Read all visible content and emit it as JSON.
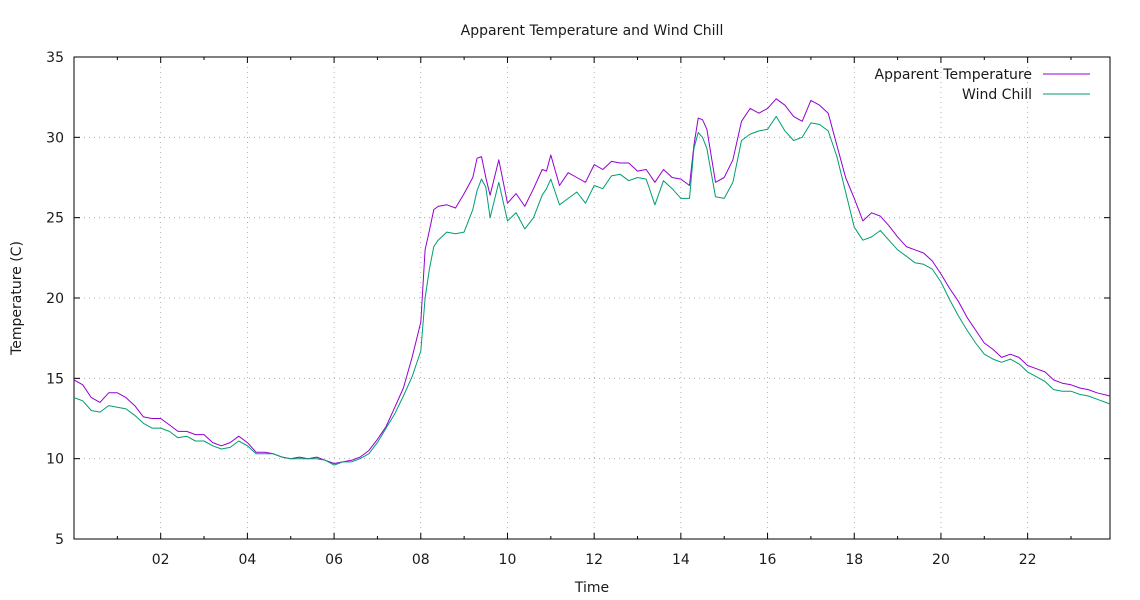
{
  "chart_data": {
    "type": "line",
    "title": "Apparent Temperature and Wind Chill",
    "xlabel": "Time",
    "ylabel": "Temperature (C)",
    "xlim": [
      0,
      23.9
    ],
    "ylim": [
      5,
      35
    ],
    "x_ticks": [
      {
        "value": 2,
        "label": "02"
      },
      {
        "value": 4,
        "label": "04"
      },
      {
        "value": 6,
        "label": "06"
      },
      {
        "value": 8,
        "label": "08"
      },
      {
        "value": 10,
        "label": "10"
      },
      {
        "value": 12,
        "label": "12"
      },
      {
        "value": 14,
        "label": "14"
      },
      {
        "value": 16,
        "label": "16"
      },
      {
        "value": 18,
        "label": "18"
      },
      {
        "value": 20,
        "label": "20"
      },
      {
        "value": 22,
        "label": "22"
      }
    ],
    "y_ticks": [
      {
        "value": 5,
        "label": "5"
      },
      {
        "value": 10,
        "label": "10"
      },
      {
        "value": 15,
        "label": "15"
      },
      {
        "value": 20,
        "label": "20"
      },
      {
        "value": 25,
        "label": "25"
      },
      {
        "value": 30,
        "label": "30"
      },
      {
        "value": 35,
        "label": "35"
      }
    ],
    "grid": true,
    "legend_position": "top-right",
    "series": [
      {
        "name": "Apparent Temperature",
        "color": "#9400d3",
        "x": [
          0,
          0.2,
          0.4,
          0.6,
          0.8,
          1.0,
          1.2,
          1.4,
          1.6,
          1.8,
          2.0,
          2.2,
          2.4,
          2.6,
          2.8,
          3.0,
          3.2,
          3.4,
          3.6,
          3.8,
          4.0,
          4.2,
          4.4,
          4.6,
          4.8,
          5.0,
          5.2,
          5.4,
          5.6,
          5.8,
          6.0,
          6.2,
          6.4,
          6.6,
          6.8,
          7.0,
          7.2,
          7.4,
          7.6,
          7.8,
          8.0,
          8.1,
          8.2,
          8.3,
          8.4,
          8.6,
          8.8,
          9.0,
          9.2,
          9.3,
          9.4,
          9.5,
          9.6,
          9.8,
          10.0,
          10.2,
          10.4,
          10.6,
          10.8,
          10.9,
          11.0,
          11.2,
          11.4,
          11.6,
          11.8,
          12.0,
          12.2,
          12.4,
          12.6,
          12.8,
          13.0,
          13.2,
          13.4,
          13.6,
          13.8,
          14.0,
          14.2,
          14.3,
          14.4,
          14.5,
          14.6,
          14.8,
          15.0,
          15.2,
          15.4,
          15.6,
          15.8,
          16.0,
          16.2,
          16.4,
          16.6,
          16.8,
          17.0,
          17.2,
          17.4,
          17.6,
          17.8,
          18.0,
          18.2,
          18.4,
          18.6,
          18.8,
          19.0,
          19.2,
          19.4,
          19.6,
          19.8,
          20.0,
          20.2,
          20.4,
          20.6,
          20.8,
          21.0,
          21.2,
          21.4,
          21.6,
          21.8,
          22.0,
          22.2,
          22.4,
          22.6,
          22.8,
          23.0,
          23.2,
          23.4,
          23.6,
          23.9
        ],
        "y": [
          14.9,
          14.6,
          13.8,
          13.5,
          14.1,
          14.1,
          13.8,
          13.3,
          12.6,
          12.5,
          12.5,
          12.1,
          11.7,
          11.7,
          11.5,
          11.5,
          11.0,
          10.8,
          11.0,
          11.4,
          11.0,
          10.4,
          10.4,
          10.3,
          10.1,
          10.0,
          10.1,
          10.0,
          10.1,
          9.9,
          9.7,
          9.8,
          9.9,
          10.1,
          10.5,
          11.2,
          12.0,
          13.2,
          14.4,
          16.3,
          18.5,
          23.0,
          24.2,
          25.5,
          25.7,
          25.8,
          25.6,
          26.5,
          27.5,
          28.7,
          28.8,
          27.5,
          26.4,
          28.6,
          25.9,
          26.5,
          25.7,
          26.8,
          28.0,
          27.9,
          28.9,
          27.0,
          27.8,
          27.5,
          27.2,
          28.3,
          28.0,
          28.5,
          28.4,
          28.4,
          27.9,
          28.0,
          27.2,
          28.0,
          27.5,
          27.4,
          27.0,
          29.5,
          31.2,
          31.1,
          30.5,
          27.2,
          27.5,
          28.6,
          31.0,
          31.8,
          31.5,
          31.8,
          32.4,
          32.0,
          31.3,
          31.0,
          32.3,
          32.0,
          31.5,
          29.5,
          27.5,
          26.2,
          24.8,
          25.3,
          25.1,
          24.5,
          23.8,
          23.2,
          23.0,
          22.8,
          22.3,
          21.5,
          20.6,
          19.8,
          18.8,
          18.0,
          17.2,
          16.8,
          16.3,
          16.5,
          16.3,
          15.8,
          15.6,
          15.4,
          14.9,
          14.7,
          14.6,
          14.4,
          14.3,
          14.1,
          13.9
        ]
      },
      {
        "name": "Wind Chill",
        "color": "#009e73",
        "x": [
          0,
          0.2,
          0.4,
          0.6,
          0.8,
          1.0,
          1.2,
          1.4,
          1.6,
          1.8,
          2.0,
          2.2,
          2.4,
          2.6,
          2.8,
          3.0,
          3.2,
          3.4,
          3.6,
          3.8,
          4.0,
          4.2,
          4.4,
          4.6,
          4.8,
          5.0,
          5.2,
          5.4,
          5.6,
          5.8,
          6.0,
          6.2,
          6.4,
          6.6,
          6.8,
          7.0,
          7.2,
          7.4,
          7.6,
          7.8,
          8.0,
          8.1,
          8.2,
          8.3,
          8.4,
          8.6,
          8.8,
          9.0,
          9.2,
          9.3,
          9.4,
          9.5,
          9.6,
          9.8,
          10.0,
          10.2,
          10.4,
          10.6,
          10.8,
          10.9,
          11.0,
          11.2,
          11.4,
          11.6,
          11.8,
          12.0,
          12.2,
          12.4,
          12.6,
          12.8,
          13.0,
          13.2,
          13.4,
          13.6,
          13.8,
          14.0,
          14.2,
          14.3,
          14.4,
          14.5,
          14.6,
          14.8,
          15.0,
          15.2,
          15.4,
          15.6,
          15.8,
          16.0,
          16.2,
          16.4,
          16.6,
          16.8,
          17.0,
          17.2,
          17.4,
          17.6,
          17.8,
          18.0,
          18.2,
          18.4,
          18.6,
          18.8,
          19.0,
          19.2,
          19.4,
          19.6,
          19.8,
          20.0,
          20.2,
          20.4,
          20.6,
          20.8,
          21.0,
          21.2,
          21.4,
          21.6,
          21.8,
          22.0,
          22.2,
          22.4,
          22.6,
          22.8,
          23.0,
          23.2,
          23.4,
          23.6,
          23.9
        ],
        "y": [
          13.8,
          13.6,
          13.0,
          12.9,
          13.3,
          13.2,
          13.1,
          12.7,
          12.2,
          11.9,
          11.9,
          11.7,
          11.3,
          11.4,
          11.1,
          11.1,
          10.8,
          10.6,
          10.7,
          11.1,
          10.8,
          10.3,
          10.3,
          10.3,
          10.1,
          10.0,
          10.0,
          10.0,
          10.0,
          9.9,
          9.6,
          9.8,
          9.8,
          10.0,
          10.3,
          11.0,
          11.9,
          12.8,
          13.9,
          15.1,
          16.7,
          20.0,
          21.8,
          23.2,
          23.6,
          24.1,
          24.0,
          24.1,
          25.5,
          26.7,
          27.4,
          26.9,
          25.0,
          27.2,
          24.8,
          25.3,
          24.3,
          25.0,
          26.4,
          26.8,
          27.4,
          25.8,
          26.2,
          26.6,
          25.9,
          27.0,
          26.8,
          27.6,
          27.7,
          27.3,
          27.5,
          27.4,
          25.8,
          27.3,
          26.8,
          26.2,
          26.2,
          29.3,
          30.3,
          30.0,
          29.3,
          26.3,
          26.2,
          27.2,
          29.8,
          30.2,
          30.4,
          30.5,
          31.3,
          30.4,
          29.8,
          30.0,
          30.9,
          30.8,
          30.4,
          28.8,
          26.6,
          24.4,
          23.6,
          23.8,
          24.2,
          23.6,
          23.0,
          22.6,
          22.2,
          22.1,
          21.8,
          21.0,
          19.9,
          18.9,
          18.0,
          17.2,
          16.5,
          16.2,
          16.0,
          16.2,
          15.9,
          15.4,
          15.1,
          14.8,
          14.3,
          14.2,
          14.2,
          14.0,
          13.9,
          13.7,
          13.4
        ]
      }
    ]
  }
}
